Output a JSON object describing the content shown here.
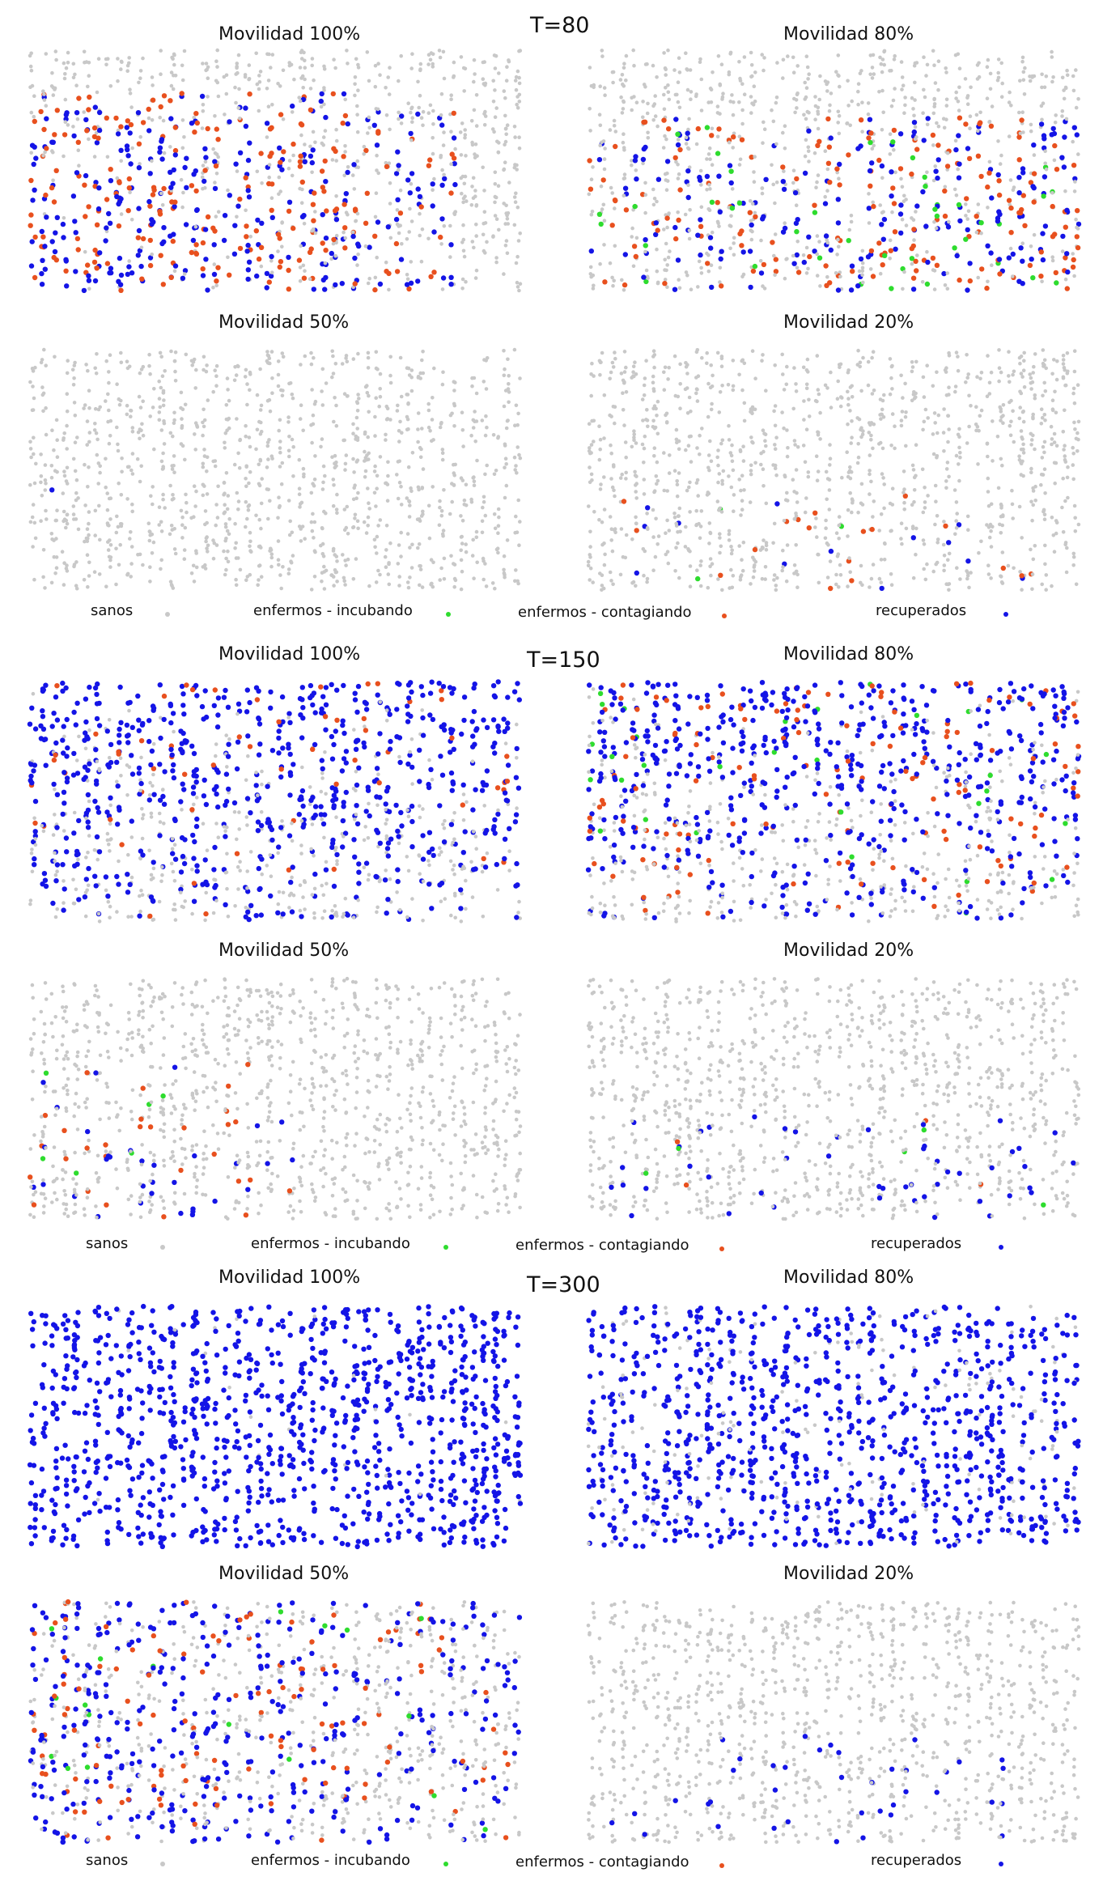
{
  "colors": {
    "sanos": "#c8c8c8",
    "incubando": "#2edc2e",
    "contagiando": "#e8501e",
    "recuperados": "#1414e6"
  },
  "legend": {
    "sanos": "sanos",
    "incubando": "enfermos - incubando",
    "contagiando": "enfermos - contagiando",
    "recuperados": "recuperados"
  },
  "chart_data": [
    {
      "type": "scatter",
      "time_label": "T=80",
      "title": "Movilidad 100%",
      "seed": 11,
      "healthy_count": 1150,
      "recovered_fraction": 0.45,
      "infected_fraction": 0.25,
      "incubating_fraction": 0.05,
      "infection_region": "lower-left",
      "infection_extent": [
        0,
        0,
        0.87,
        0.82
      ]
    },
    {
      "type": "scatter",
      "title": "Movilidad 80%",
      "seed": 23,
      "healthy_count": 1150,
      "recovered_fraction": 0.3,
      "infected_fraction": 0.15,
      "incubating_fraction": 0.04,
      "infection_region": "lower-right",
      "infection_extent": [
        0,
        0,
        1,
        0.72
      ]
    },
    {
      "type": "scatter",
      "title": "Movilidad 50%",
      "seed": 37,
      "healthy_count": 1150,
      "recovered_fraction": 0.012,
      "infected_fraction": 0.01,
      "incubating_fraction": 0.006,
      "infection_region": "lower-left",
      "infection_extent": [
        0,
        0,
        0.15,
        0.42
      ]
    },
    {
      "type": "scatter",
      "title": "Movilidad 20%",
      "seed": 41,
      "healthy_count": 1150,
      "recovered_fraction": 0.03,
      "infected_fraction": 0.025,
      "incubating_fraction": 0.005,
      "infection_region": "lower-center",
      "infection_extent": [
        0.05,
        0,
        0.9,
        0.4
      ]
    },
    {
      "type": "scatter",
      "time_label": "T=150",
      "title": "Movilidad 100%",
      "seed": 53,
      "healthy_count": 1150,
      "recovered_fraction": 0.92,
      "infected_fraction": 0.05,
      "incubating_fraction": 0.01,
      "infection_region": "top",
      "infection_extent": [
        0,
        0,
        1,
        1
      ]
    },
    {
      "type": "scatter",
      "title": "Movilidad 80%",
      "seed": 67,
      "healthy_count": 1150,
      "recovered_fraction": 0.72,
      "infected_fraction": 0.1,
      "incubating_fraction": 0.02,
      "infection_region": "top",
      "infection_extent": [
        0,
        0,
        1,
        1
      ]
    },
    {
      "type": "scatter",
      "title": "Movilidad 50%",
      "seed": 71,
      "healthy_count": 1150,
      "recovered_fraction": 0.08,
      "infected_fraction": 0.05,
      "incubating_fraction": 0.01,
      "infection_region": "lower-left",
      "infection_extent": [
        0,
        0,
        0.55,
        0.65
      ]
    },
    {
      "type": "scatter",
      "title": "Movilidad 20%",
      "seed": 83,
      "healthy_count": 1150,
      "recovered_fraction": 0.05,
      "infected_fraction": 0.005,
      "incubating_fraction": 0.003,
      "infection_region": "lower-center",
      "infection_extent": [
        0.05,
        0,
        1,
        0.45
      ]
    },
    {
      "type": "scatter",
      "time_label": "T=300",
      "title": "Movilidad 100%",
      "seed": 97,
      "healthy_count": 1150,
      "recovered_fraction": 0.99,
      "infected_fraction": 0,
      "incubating_fraction": 0,
      "infection_region": "all",
      "infection_extent": [
        0,
        0,
        1,
        1
      ]
    },
    {
      "type": "scatter",
      "title": "Movilidad 80%",
      "seed": 101,
      "healthy_count": 1150,
      "recovered_fraction": 0.82,
      "infected_fraction": 0,
      "incubating_fraction": 0,
      "infection_region": "all",
      "infection_extent": [
        0,
        0,
        1,
        1
      ]
    },
    {
      "type": "scatter",
      "title": "Movilidad 50%",
      "seed": 113,
      "healthy_count": 1150,
      "recovered_fraction": 0.5,
      "infected_fraction": 0.08,
      "incubating_fraction": 0.01,
      "infection_region": "left-to-right",
      "infection_extent": [
        0,
        0,
        1,
        1
      ]
    },
    {
      "type": "scatter",
      "title": "Movilidad 20%",
      "seed": 127,
      "healthy_count": 1150,
      "recovered_fraction": 0.06,
      "infected_fraction": 0,
      "incubating_fraction": 0,
      "infection_region": "lower-center",
      "infection_extent": [
        0.05,
        0,
        0.85,
        0.45
      ]
    }
  ]
}
